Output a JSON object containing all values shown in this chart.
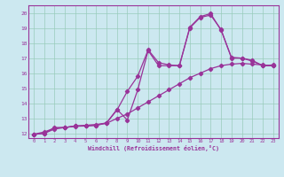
{
  "xlabel": "Windchill (Refroidissement éolien,°C)",
  "bg_color": "#cce8f0",
  "line_color": "#993399",
  "grid_color": "#99ccbb",
  "spine_color": "#993399",
  "xmin": -0.5,
  "xmax": 23.5,
  "ymin": 11.7,
  "ymax": 20.5,
  "yticks": [
    12,
    13,
    14,
    15,
    16,
    17,
    18,
    19,
    20
  ],
  "xticks": [
    0,
    1,
    2,
    3,
    4,
    5,
    6,
    7,
    8,
    9,
    10,
    11,
    12,
    13,
    14,
    15,
    16,
    17,
    18,
    19,
    20,
    21,
    22,
    23
  ],
  "line1_x": [
    0,
    1,
    2,
    3,
    4,
    5,
    6,
    7,
    8,
    9,
    10,
    11,
    12,
    13,
    14,
    15,
    16,
    17,
    18,
    19,
    20,
    21,
    22,
    23
  ],
  "line1_y": [
    11.95,
    12.0,
    12.4,
    12.4,
    12.5,
    12.5,
    12.55,
    12.7,
    13.6,
    12.9,
    14.9,
    17.5,
    16.5,
    16.5,
    16.5,
    19.0,
    19.7,
    19.85,
    18.9,
    17.0,
    17.0,
    16.8,
    16.5,
    16.5
  ],
  "line2_x": [
    0,
    1,
    2,
    3,
    4,
    5,
    6,
    7,
    8,
    9,
    10,
    11,
    12,
    13,
    14,
    15,
    16,
    17,
    18,
    19,
    20,
    21,
    22,
    23
  ],
  "line2_y": [
    11.95,
    12.1,
    12.35,
    12.4,
    12.5,
    12.55,
    12.6,
    12.7,
    13.55,
    14.8,
    15.8,
    17.55,
    16.7,
    16.55,
    16.5,
    19.05,
    19.75,
    19.95,
    18.85,
    17.05,
    17.0,
    16.85,
    16.5,
    16.55
  ],
  "line3_x": [
    0,
    1,
    2,
    3,
    4,
    5,
    6,
    7,
    8,
    9,
    10,
    11,
    12,
    13,
    14,
    15,
    16,
    17,
    18,
    19,
    20,
    21,
    22,
    23
  ],
  "line3_y": [
    11.95,
    12.0,
    12.3,
    12.4,
    12.48,
    12.5,
    12.55,
    12.68,
    13.0,
    13.3,
    13.7,
    14.1,
    14.5,
    14.9,
    15.3,
    15.7,
    16.0,
    16.3,
    16.5,
    16.6,
    16.65,
    16.6,
    16.55,
    16.5
  ]
}
